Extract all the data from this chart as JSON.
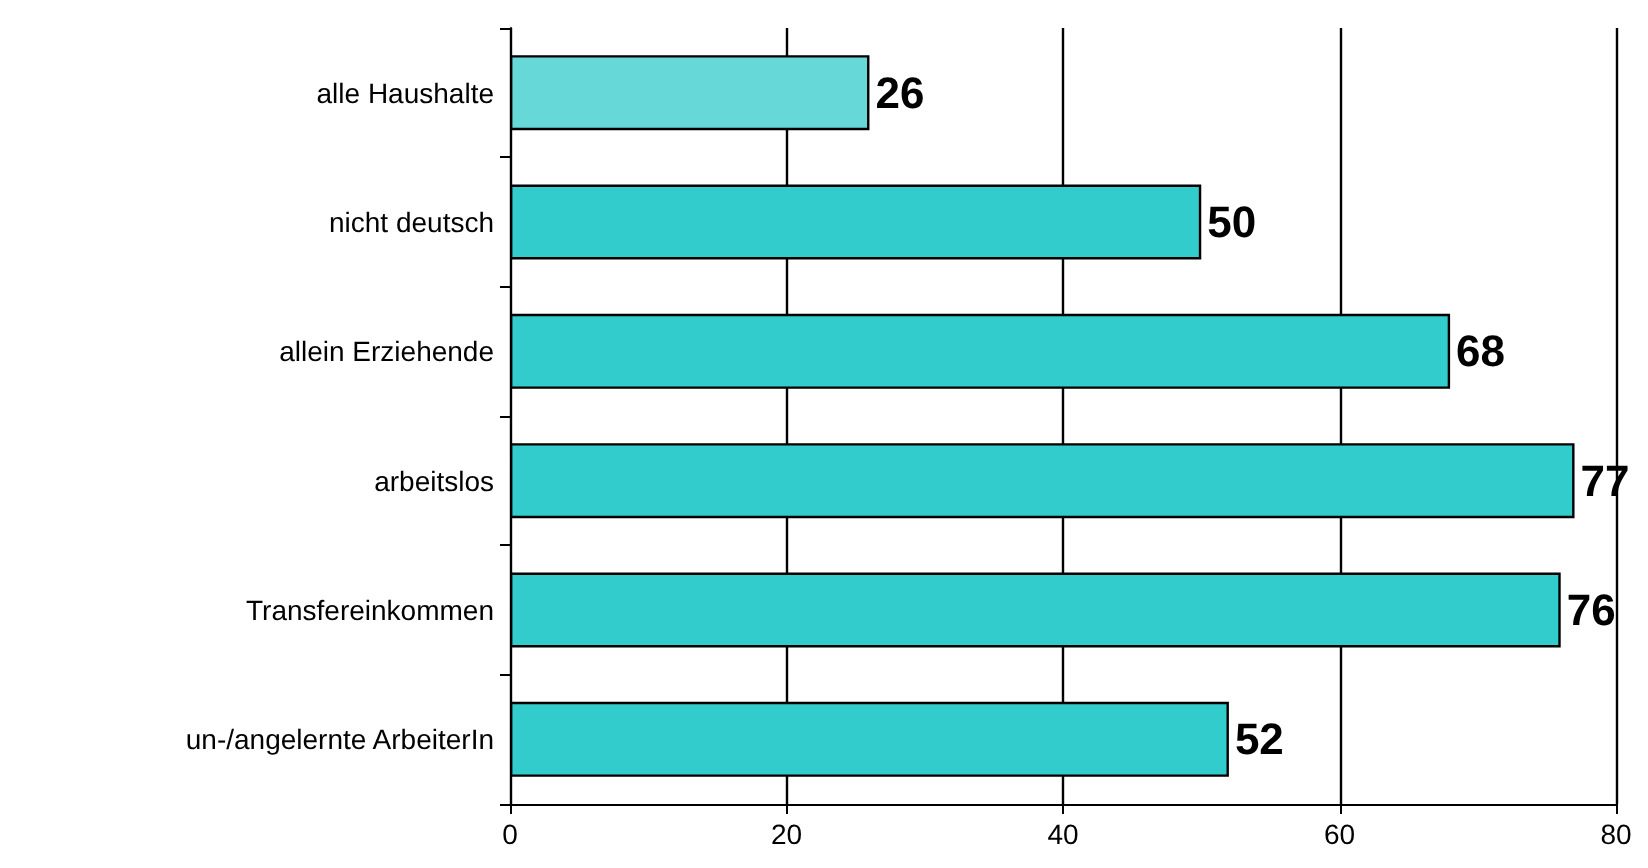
{
  "chart_data": {
    "type": "bar",
    "orientation": "horizontal",
    "categories": [
      "alle Haushalte",
      "nicht deutsch",
      "allein Erziehende",
      "arbeitslos",
      "Transfereinkommen",
      "un-/angelernte ArbeiterIn"
    ],
    "values": [
      26,
      50,
      68,
      77,
      76,
      52
    ],
    "colors": [
      "#66d8d8",
      "#33cccc",
      "#33cccc",
      "#33cccc",
      "#33cccc",
      "#33cccc"
    ],
    "xlim": [
      0,
      80
    ],
    "xticks": [
      0,
      20,
      40,
      60,
      80
    ],
    "grid": "x",
    "data_labels": true
  }
}
